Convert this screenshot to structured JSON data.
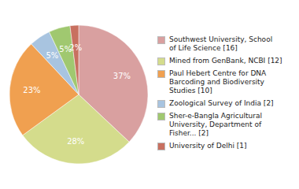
{
  "chart_data": {
    "type": "pie",
    "categories": [
      "Southwest University, School\nof Life Science [16]",
      "Mined from GenBank, NCBI [12]",
      "Paul Hebert Centre for DNA\nBarcoding and Biodiversity\nStudies [10]",
      "Zoological Survey of India [2]",
      "Sher-e-Bangla Agricultural\nUniversity, Department of\nFisher... [2]",
      "University of Delhi [1]"
    ],
    "values": [
      37,
      28,
      23,
      5,
      5,
      2
    ],
    "value_labels": [
      "37%",
      "28%",
      "23%",
      "5%",
      "5%",
      "2%"
    ],
    "colors": [
      "#d9a0a0",
      "#d4dc8c",
      "#f0a050",
      "#a8c4e0",
      "#a0c870",
      "#c87060"
    ],
    "data_labels": true,
    "legend": "right"
  }
}
